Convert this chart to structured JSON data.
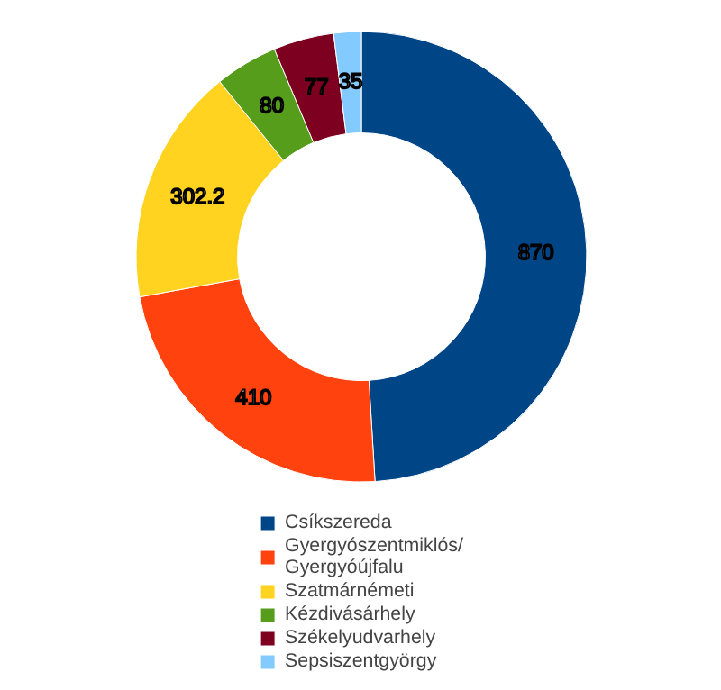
{
  "chart_data": {
    "type": "donut",
    "categories": [
      "Csíkszereda",
      "Gyergyószentmiklós/Gyergyóújfalu",
      "Szatmárnémeti",
      "Kézdivásárhely",
      "Székelyudvarhely",
      "Sepsiszentgyörgy"
    ],
    "values": [
      870,
      410,
      302.2,
      80,
      77,
      35
    ],
    "colors": [
      "#004586",
      "#ff420e",
      "#ffd320",
      "#579d1c",
      "#7e0021",
      "#83caff"
    ],
    "data_labels": true,
    "legend": "bottom"
  }
}
